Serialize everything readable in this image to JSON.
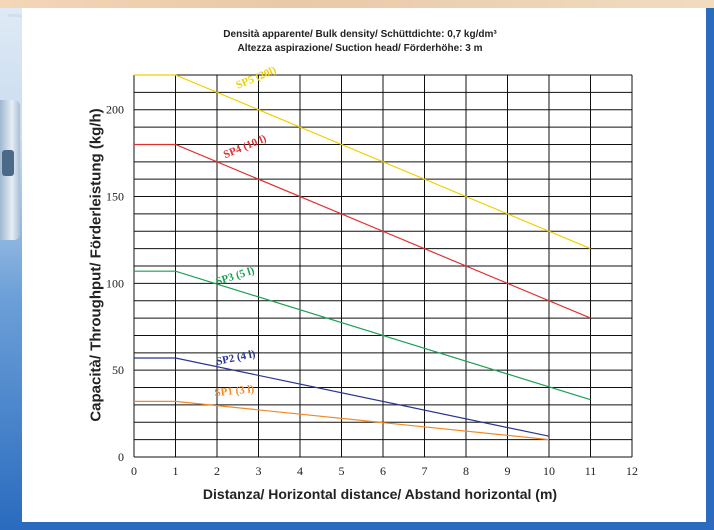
{
  "chart_data": {
    "type": "line",
    "title": "Densità apparente/ Bulk density/ Schüttdichte: 0,7 kg/dm³",
    "subtitle": "Altezza aspirazione/ Suction head/ Förderhöhe: 3 m",
    "xlabel": "Distanza/ Horizontal distance/ Abstand horizontal (m)",
    "ylabel": "Capacità/ Throughput/  Förderleistung (kg/h)",
    "xlim": [
      0,
      12
    ],
    "ylim": [
      0,
      220
    ],
    "xticks": [
      "0",
      "1",
      "2",
      "3",
      "4",
      "5",
      "6",
      "7",
      "8",
      "9",
      "10",
      "11",
      "12"
    ],
    "yticks": [
      {
        "value": 0,
        "label": "0"
      },
      {
        "value": 50,
        "label": "50"
      },
      {
        "value": 100,
        "label": "100"
      },
      {
        "value": 150,
        "label": "150"
      },
      {
        "value": 200,
        "label": "200"
      }
    ],
    "grid": true,
    "series": [
      {
        "name": "SP5 (20l)",
        "color": "#f0d000",
        "points": [
          [
            0,
            220
          ],
          [
            1,
            220
          ],
          [
            11,
            120
          ]
        ],
        "label_at": [
          2.5,
          212
        ]
      },
      {
        "name": "SP4 (10 l)",
        "color": "#e03030",
        "points": [
          [
            0,
            180
          ],
          [
            1,
            180
          ],
          [
            11,
            80
          ]
        ],
        "label_at": [
          2.2,
          172
        ]
      },
      {
        "name": "SP3 (5 l)",
        "color": "#1aa050",
        "points": [
          [
            0,
            107
          ],
          [
            1,
            107
          ],
          [
            11,
            33
          ]
        ],
        "label_at": [
          2.0,
          99
        ]
      },
      {
        "name": "SP2 (4 l)",
        "color": "#2a3590",
        "points": [
          [
            0,
            57
          ],
          [
            1,
            57
          ],
          [
            10,
            12
          ]
        ],
        "label_at": [
          2.0,
          53
        ]
      },
      {
        "name": "SP1 (3 l)",
        "color": "#f08a28",
        "points": [
          [
            0,
            32
          ],
          [
            1,
            32
          ],
          [
            10,
            10
          ]
        ],
        "label_at": [
          1.95,
          35
        ]
      }
    ]
  }
}
